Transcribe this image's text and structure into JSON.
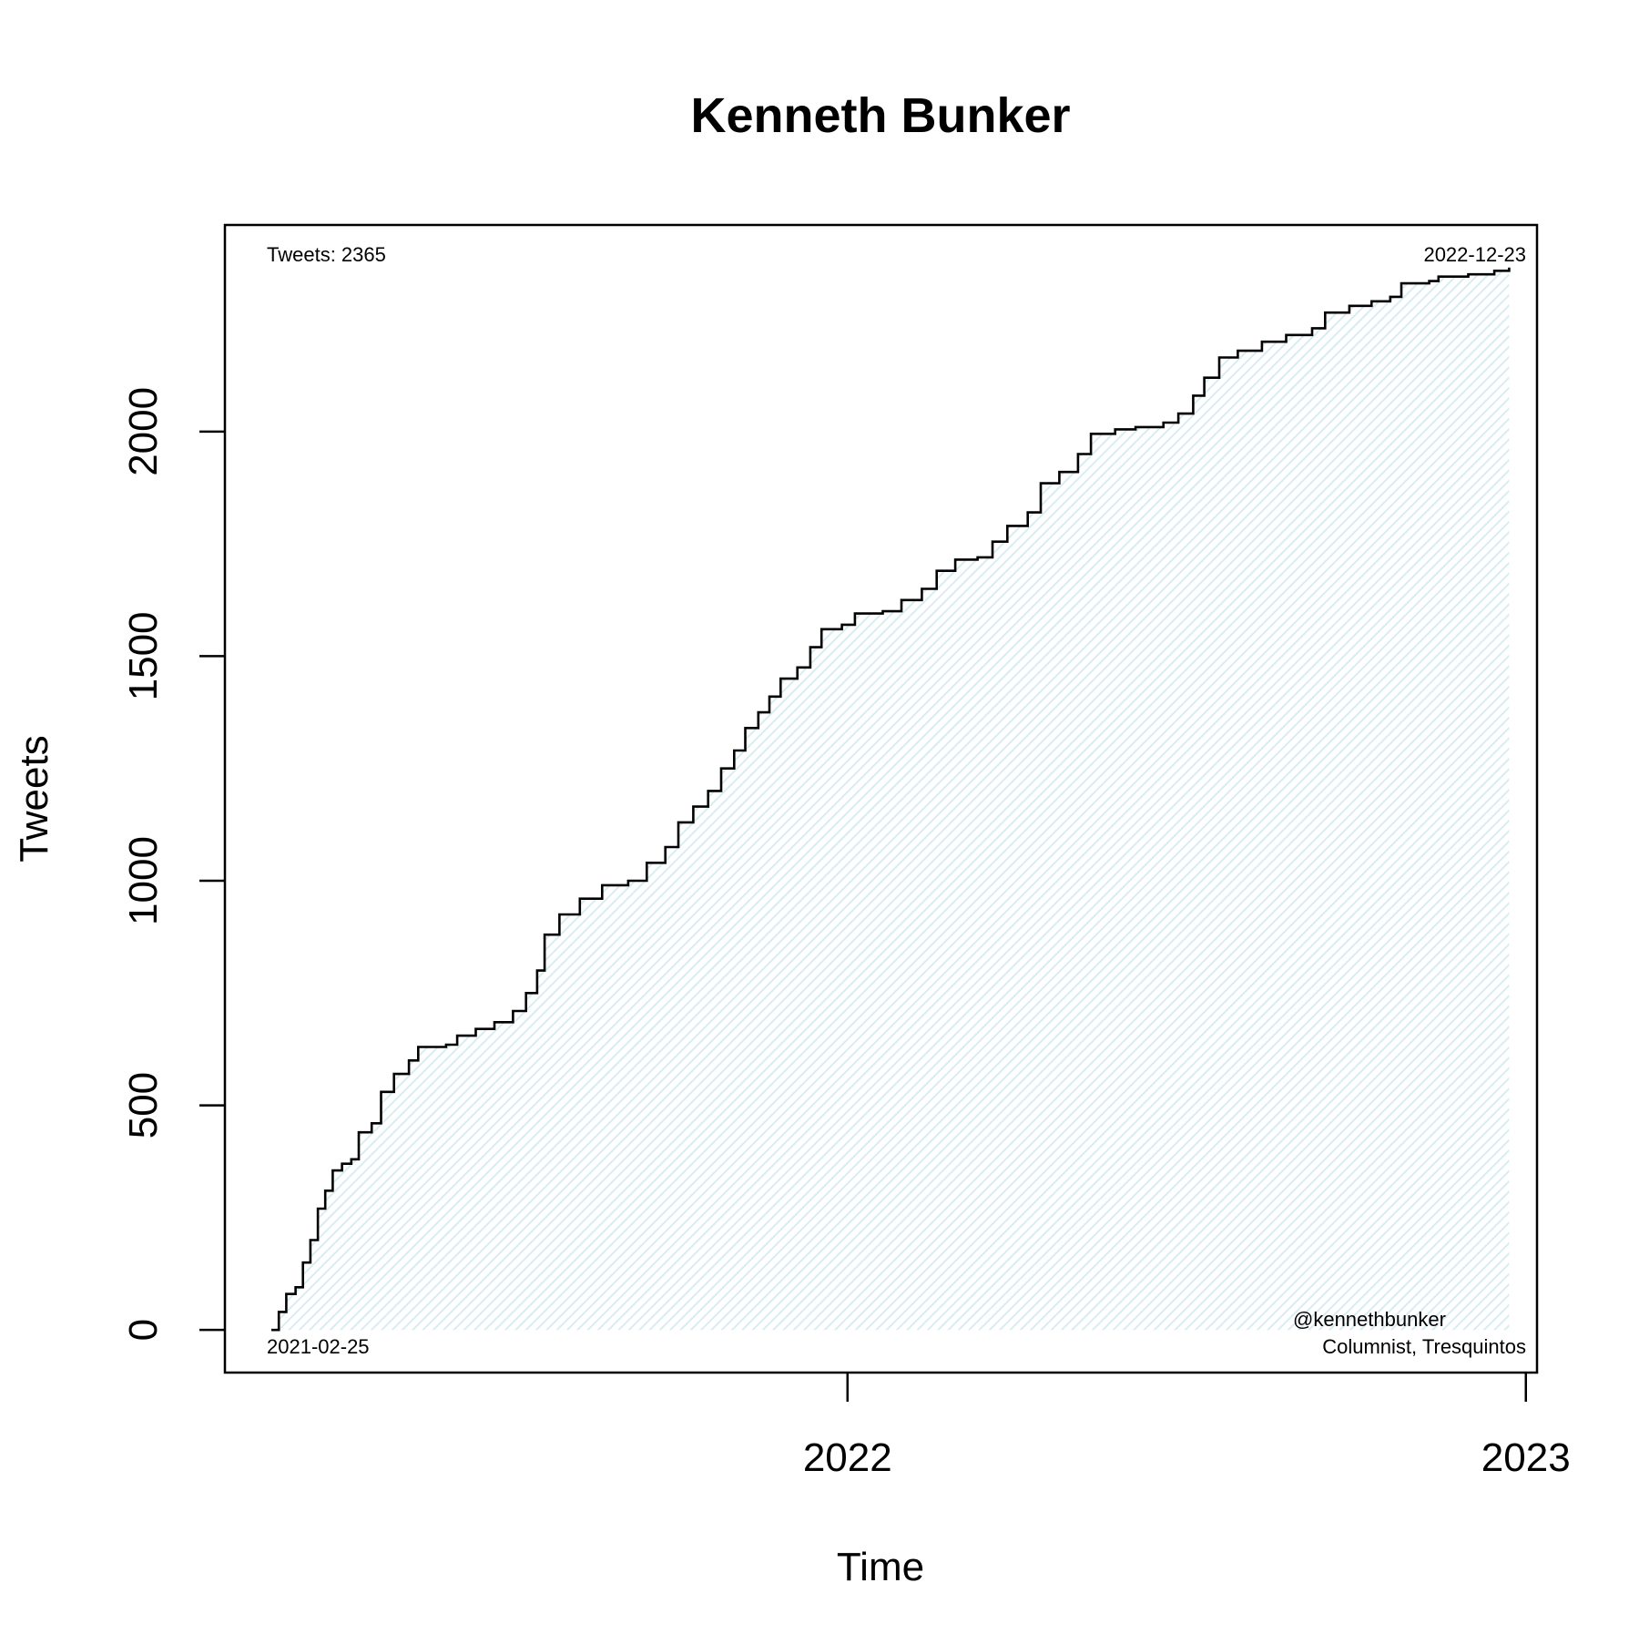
{
  "chart_data": {
    "type": "area",
    "title": "Kenneth Bunker",
    "xlabel": "Time",
    "ylabel": "Tweets",
    "x_ticks": [
      {
        "label": "2022",
        "value": "2022-01-01"
      },
      {
        "label": "2023",
        "value": "2023-01-01"
      }
    ],
    "y_ticks": [
      0,
      500,
      1000,
      1500,
      2000
    ],
    "xlim": [
      "2021-01-31",
      "2023-01-07"
    ],
    "ylim": [
      -95,
      2460
    ],
    "grid": false,
    "fill_color": "#eaf6f8",
    "line_color": "#000000",
    "annotations": {
      "top_left": "Tweets: 2365",
      "top_right": "2022-12-23",
      "bottom_left": "2021-02-25",
      "bottom_right_line1": "@kennethbunker",
      "bottom_right_line2": "Columnist, Tresquintos"
    },
    "series": [
      {
        "points": [
          [
            "2021-02-25",
            0
          ],
          [
            "2021-03-01",
            40
          ],
          [
            "2021-03-05",
            80
          ],
          [
            "2021-03-10",
            95
          ],
          [
            "2021-03-14",
            150
          ],
          [
            "2021-03-18",
            200
          ],
          [
            "2021-03-22",
            270
          ],
          [
            "2021-03-26",
            310
          ],
          [
            "2021-03-30",
            355
          ],
          [
            "2021-04-04",
            370
          ],
          [
            "2021-04-09",
            380
          ],
          [
            "2021-04-13",
            440
          ],
          [
            "2021-04-20",
            460
          ],
          [
            "2021-04-25",
            530
          ],
          [
            "2021-05-02",
            570
          ],
          [
            "2021-05-10",
            600
          ],
          [
            "2021-05-15",
            630
          ],
          [
            "2021-05-30",
            635
          ],
          [
            "2021-06-05",
            655
          ],
          [
            "2021-06-15",
            670
          ],
          [
            "2021-06-25",
            685
          ],
          [
            "2021-07-05",
            710
          ],
          [
            "2021-07-12",
            750
          ],
          [
            "2021-07-18",
            800
          ],
          [
            "2021-07-22",
            880
          ],
          [
            "2021-07-30",
            925
          ],
          [
            "2021-08-10",
            960
          ],
          [
            "2021-08-22",
            990
          ],
          [
            "2021-09-05",
            1000
          ],
          [
            "2021-09-15",
            1040
          ],
          [
            "2021-09-25",
            1075
          ],
          [
            "2021-10-02",
            1130
          ],
          [
            "2021-10-10",
            1165
          ],
          [
            "2021-10-18",
            1200
          ],
          [
            "2021-10-25",
            1250
          ],
          [
            "2021-11-01",
            1290
          ],
          [
            "2021-11-07",
            1340
          ],
          [
            "2021-11-14",
            1375
          ],
          [
            "2021-11-20",
            1410
          ],
          [
            "2021-11-26",
            1450
          ],
          [
            "2021-12-05",
            1475
          ],
          [
            "2021-12-12",
            1520
          ],
          [
            "2021-12-18",
            1560
          ],
          [
            "2021-12-29",
            1570
          ],
          [
            "2022-01-05",
            1595
          ],
          [
            "2022-01-20",
            1600
          ],
          [
            "2022-01-30",
            1625
          ],
          [
            "2022-02-10",
            1650
          ],
          [
            "2022-02-18",
            1690
          ],
          [
            "2022-02-28",
            1715
          ],
          [
            "2022-03-12",
            1720
          ],
          [
            "2022-03-20",
            1755
          ],
          [
            "2022-03-28",
            1790
          ],
          [
            "2022-04-08",
            1820
          ],
          [
            "2022-04-15",
            1885
          ],
          [
            "2022-04-25",
            1910
          ],
          [
            "2022-05-05",
            1950
          ],
          [
            "2022-05-12",
            1995
          ],
          [
            "2022-05-25",
            2005
          ],
          [
            "2022-06-05",
            2010
          ],
          [
            "2022-06-20",
            2020
          ],
          [
            "2022-06-28",
            2040
          ],
          [
            "2022-07-06",
            2080
          ],
          [
            "2022-07-12",
            2120
          ],
          [
            "2022-07-20",
            2165
          ],
          [
            "2022-07-30",
            2180
          ],
          [
            "2022-08-12",
            2200
          ],
          [
            "2022-08-25",
            2215
          ],
          [
            "2022-09-08",
            2230
          ],
          [
            "2022-09-15",
            2265
          ],
          [
            "2022-09-28",
            2280
          ],
          [
            "2022-10-10",
            2290
          ],
          [
            "2022-10-20",
            2300
          ],
          [
            "2022-10-26",
            2330
          ],
          [
            "2022-11-10",
            2335
          ],
          [
            "2022-11-15",
            2345
          ],
          [
            "2022-12-01",
            2350
          ],
          [
            "2022-12-15",
            2358
          ],
          [
            "2022-12-23",
            2365
          ]
        ]
      }
    ]
  }
}
